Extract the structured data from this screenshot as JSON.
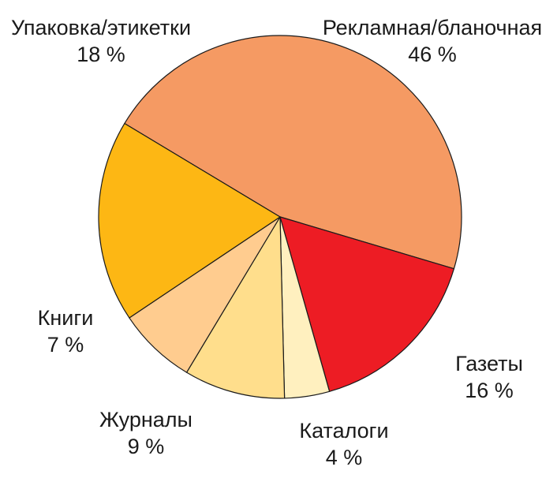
{
  "chart_data": {
    "type": "pie",
    "title": "",
    "slices": [
      {
        "label": "Рекламная/бланочная",
        "value": 46,
        "value_label": "46 %",
        "color": "#F59A63"
      },
      {
        "label": "Газеты",
        "value": 16,
        "value_label": "16 %",
        "color": "#ED1C24"
      },
      {
        "label": "Каталоги",
        "value": 4,
        "value_label": "4 %",
        "color": "#FFF0BF"
      },
      {
        "label": "Журналы",
        "value": 9,
        "value_label": "9 %",
        "color": "#FFDE8C"
      },
      {
        "label": "Книги",
        "value": 7,
        "value_label": "7 %",
        "color": "#FFCC8F"
      },
      {
        "label": "Упаковка/этикетки",
        "value": 18,
        "value_label": "18 %",
        "color": "#FDB714"
      }
    ],
    "legend": "none"
  }
}
